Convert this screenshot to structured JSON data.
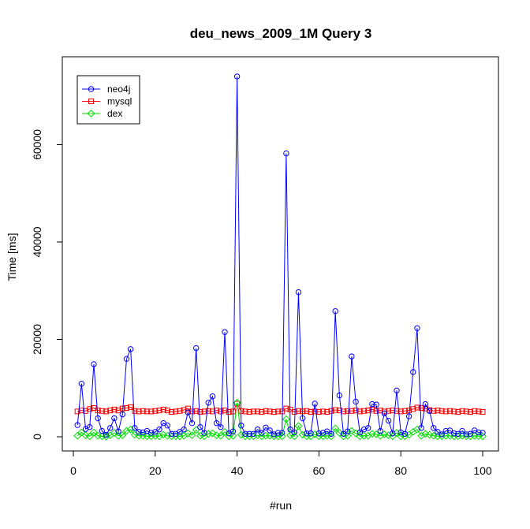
{
  "chart_data": {
    "type": "line",
    "title": "deu_news_2009_1M Query 3",
    "xlabel": "#run",
    "ylabel": "Time [ms]",
    "xlim": [
      1,
      100
    ],
    "ylim": [
      0,
      75000
    ],
    "x_ticks": [
      0,
      20,
      40,
      60,
      80,
      100
    ],
    "y_ticks": [
      0,
      20000,
      40000,
      60000
    ],
    "legend_position": "top-left",
    "grid": false,
    "x": [
      1,
      2,
      3,
      4,
      5,
      6,
      7,
      8,
      9,
      10,
      11,
      12,
      13,
      14,
      15,
      16,
      17,
      18,
      19,
      20,
      21,
      22,
      23,
      24,
      25,
      26,
      27,
      28,
      29,
      30,
      31,
      32,
      33,
      34,
      35,
      36,
      37,
      38,
      39,
      40,
      41,
      42,
      43,
      44,
      45,
      46,
      47,
      48,
      49,
      50,
      51,
      52,
      53,
      54,
      55,
      56,
      57,
      58,
      59,
      60,
      61,
      62,
      63,
      64,
      65,
      66,
      67,
      68,
      69,
      70,
      71,
      72,
      73,
      74,
      75,
      76,
      77,
      78,
      79,
      80,
      81,
      82,
      83,
      84,
      85,
      86,
      87,
      88,
      89,
      90,
      91,
      92,
      93,
      94,
      95,
      96,
      97,
      98,
      99,
      100
    ],
    "series": [
      {
        "name": "neo4j",
        "color": "#0000FF",
        "marker": "circle",
        "values": [
          2400,
          10900,
          1600,
          2000,
          14900,
          3800,
          1200,
          400,
          1800,
          3800,
          1100,
          4600,
          16000,
          18000,
          1800,
          1000,
          900,
          1200,
          800,
          1000,
          1500,
          2800,
          2300,
          600,
          600,
          1000,
          1500,
          5000,
          2800,
          18200,
          2000,
          800,
          7000,
          8300,
          2800,
          2000,
          21500,
          700,
          1100,
          74000,
          2300,
          600,
          600,
          600,
          1500,
          800,
          1900,
          1300,
          500,
          800,
          800,
          58200,
          1500,
          900,
          29700,
          3800,
          700,
          700,
          6800,
          700,
          800,
          1100,
          600,
          25800,
          8500,
          600,
          1100,
          16500,
          7200,
          900,
          1500,
          1800,
          6700,
          6600,
          1200,
          4800,
          3300,
          700,
          9500,
          900,
          600,
          4200,
          13300,
          22300,
          1800,
          6700,
          5300,
          1800,
          1000,
          500,
          1200,
          1300,
          700,
          600,
          1200,
          500,
          600,
          1300,
          900,
          800
        ]
      },
      {
        "name": "mysql",
        "color": "#FF0000",
        "marker": "square",
        "values": [
          5200,
          5400,
          5300,
          5700,
          5900,
          5400,
          5300,
          5200,
          5400,
          5600,
          5400,
          5800,
          5900,
          6100,
          5300,
          5200,
          5300,
          5200,
          5200,
          5300,
          5400,
          5600,
          5400,
          5100,
          5200,
          5300,
          5500,
          5800,
          5200,
          5300,
          5100,
          5200,
          5300,
          5200,
          5400,
          5200,
          5400,
          5100,
          5200,
          6800,
          5300,
          5200,
          5100,
          5200,
          5200,
          5100,
          5300,
          5200,
          5100,
          5200,
          5200,
          5800,
          5600,
          5100,
          5300,
          5200,
          5300,
          5100,
          5200,
          5100,
          5200,
          5100,
          5300,
          5500,
          5400,
          5200,
          5300,
          5300,
          5400,
          5200,
          5300,
          5400,
          5600,
          5300,
          5400,
          5200,
          5300,
          5400,
          5300,
          5200,
          5300,
          5400,
          5700,
          6000,
          5900,
          5800,
          5500,
          5300,
          5400,
          5300,
          5200,
          5300,
          5200,
          5100,
          5300,
          5200,
          5100,
          5300,
          5200,
          5100
        ]
      },
      {
        "name": "dex",
        "color": "#00DD00",
        "marker": "diamond",
        "values": [
          200,
          900,
          300,
          100,
          900,
          200,
          100,
          50,
          300,
          800,
          200,
          300,
          1200,
          1500,
          400,
          200,
          200,
          100,
          100,
          200,
          100,
          400,
          200,
          100,
          100,
          100,
          200,
          700,
          300,
          1400,
          200,
          100,
          600,
          700,
          300,
          200,
          1000,
          100,
          200,
          7000,
          400,
          100,
          100,
          100,
          300,
          100,
          200,
          200,
          100,
          100,
          100,
          3600,
          300,
          100,
          2200,
          400,
          100,
          100,
          500,
          100,
          100,
          200,
          100,
          1700,
          800,
          100,
          200,
          1200,
          700,
          100,
          200,
          200,
          600,
          500,
          200,
          500,
          300,
          100,
          800,
          100,
          100,
          400,
          1000,
          1500,
          200,
          600,
          400,
          200,
          100,
          100,
          200,
          200,
          100,
          100,
          200,
          100,
          100,
          200,
          100,
          100
        ]
      }
    ]
  }
}
